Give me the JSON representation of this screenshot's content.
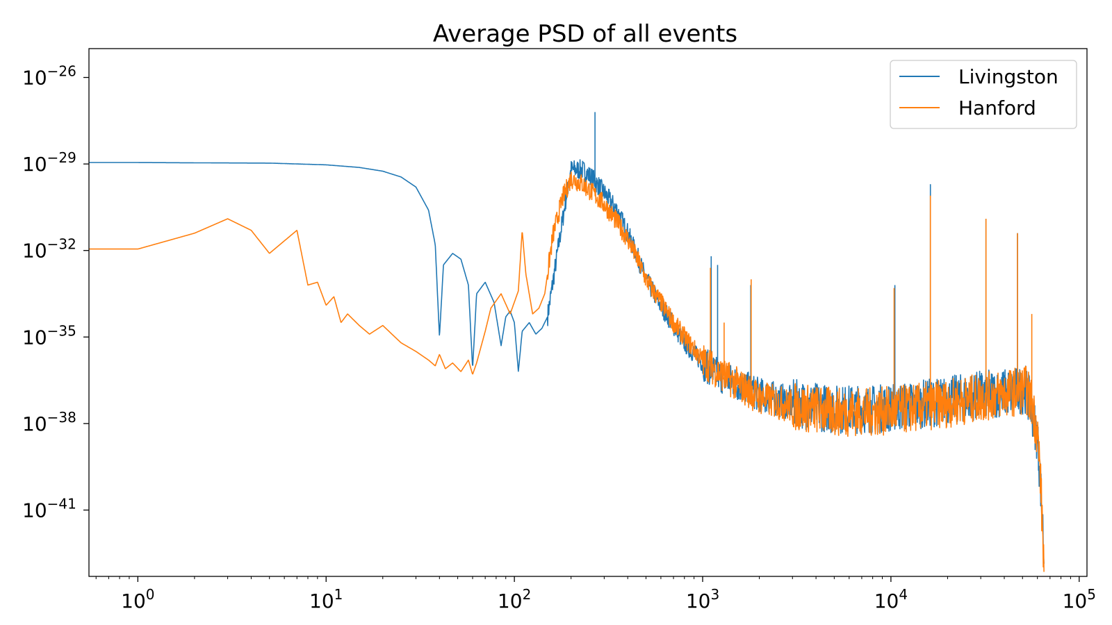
{
  "chart_data": {
    "type": "line",
    "title": "Average PSD of all events",
    "xlabel": "",
    "ylabel": "",
    "xscale": "log",
    "yscale": "log",
    "xlim": [
      0.55,
      110000
    ],
    "ylim_exponent": [
      -43.3,
      -25.0
    ],
    "grid": false,
    "legend_placement": "top-right",
    "x_ticks": [
      {
        "base": "10",
        "exp": "0",
        "value": 1
      },
      {
        "base": "10",
        "exp": "1",
        "value": 10
      },
      {
        "base": "10",
        "exp": "2",
        "value": 100
      },
      {
        "base": "10",
        "exp": "3",
        "value": 1000
      },
      {
        "base": "10",
        "exp": "4",
        "value": 10000
      },
      {
        "base": "10",
        "exp": "5",
        "value": 100000
      }
    ],
    "y_ticks": [
      {
        "base": "10",
        "exp": "−26",
        "value": -26
      },
      {
        "base": "10",
        "exp": "−29",
        "value": -29
      },
      {
        "base": "10",
        "exp": "−32",
        "value": -32
      },
      {
        "base": "10",
        "exp": "−35",
        "value": -35
      },
      {
        "base": "10",
        "exp": "−38",
        "value": -38
      },
      {
        "base": "10",
        "exp": "−41",
        "value": -41
      }
    ],
    "series": [
      {
        "name": "Livingston",
        "color": "#1f77b4",
        "y_unit": "log10(PSD)",
        "x": [
          0.55,
          1,
          2,
          5,
          10,
          15,
          20,
          25,
          30,
          35,
          38,
          40,
          42,
          47,
          52,
          57,
          60,
          63,
          70,
          78,
          85,
          90,
          95,
          100,
          105,
          110,
          120,
          130,
          140,
          150,
          170,
          190,
          200,
          230,
          260,
          300,
          350,
          400,
          450,
          500,
          600,
          700,
          800,
          1000,
          1200,
          1500,
          2000,
          3000,
          5000,
          8000,
          12000,
          20000,
          30000,
          45000,
          52000,
          56000,
          60000,
          62000,
          64000,
          65000
        ],
        "y": [
          -28.95,
          -28.95,
          -28.96,
          -28.97,
          -29.03,
          -29.12,
          -29.25,
          -29.45,
          -29.8,
          -30.6,
          -31.8,
          -35.0,
          -32.5,
          -32.1,
          -32.3,
          -33.2,
          -36.1,
          -33.5,
          -33.1,
          -33.8,
          -35.3,
          -34.3,
          -34.1,
          -34.5,
          -36.2,
          -34.8,
          -34.5,
          -34.9,
          -34.7,
          -34.3,
          -32.0,
          -30.0,
          -29.2,
          -29.2,
          -29.5,
          -30.0,
          -30.6,
          -31.4,
          -32.2,
          -33.0,
          -33.9,
          -34.6,
          -35.2,
          -35.9,
          -36.3,
          -36.6,
          -37.0,
          -37.3,
          -37.5,
          -37.5,
          -37.4,
          -37.2,
          -37.0,
          -36.9,
          -36.8,
          -37.5,
          -38.5,
          -39.8,
          -41.5,
          -42.7
        ],
        "spikes": [
          {
            "x": 268,
            "y": -27.2
          },
          {
            "x": 16200,
            "y": -29.7
          },
          {
            "x": 32000,
            "y": -30.9
          },
          {
            "x": 47000,
            "y": -31.4
          },
          {
            "x": 1110,
            "y": -32.2
          },
          {
            "x": 1200,
            "y": -32.5
          },
          {
            "x": 1800,
            "y": -33.2
          },
          {
            "x": 10500,
            "y": -33.2
          }
        ]
      },
      {
        "name": "Hanford",
        "color": "#ff7f0e",
        "y_unit": "log10(PSD)",
        "x": [
          0.55,
          1,
          2,
          3,
          4,
          5,
          7,
          8,
          9,
          10,
          11,
          12,
          13,
          15,
          17,
          20,
          25,
          30,
          35,
          38,
          40,
          43,
          47,
          52,
          57,
          60,
          63,
          70,
          75,
          85,
          95,
          105,
          110,
          115,
          125,
          135,
          145,
          160,
          180,
          200,
          230,
          260,
          300,
          350,
          400,
          450,
          500,
          600,
          700,
          800,
          1000,
          1200,
          1500,
          2000,
          3000,
          5000,
          8000,
          12000,
          20000,
          30000,
          45000,
          52000,
          56000,
          60000,
          62000,
          64000,
          65000
        ],
        "y": [
          -31.95,
          -31.95,
          -31.4,
          -30.9,
          -31.3,
          -32.1,
          -31.3,
          -33.2,
          -33.1,
          -33.9,
          -33.6,
          -34.5,
          -34.2,
          -34.6,
          -34.9,
          -34.6,
          -35.2,
          -35.5,
          -35.8,
          -36.0,
          -35.6,
          -36.1,
          -35.9,
          -36.2,
          -35.8,
          -36.3,
          -35.9,
          -34.8,
          -34.0,
          -33.5,
          -34.2,
          -33.4,
          -31.3,
          -32.8,
          -34.2,
          -34.0,
          -33.5,
          -31.5,
          -30.2,
          -29.5,
          -29.7,
          -30.0,
          -30.4,
          -31.0,
          -31.6,
          -32.3,
          -33.0,
          -33.8,
          -34.5,
          -35.0,
          -35.8,
          -36.2,
          -36.6,
          -37.1,
          -37.4,
          -37.6,
          -37.6,
          -37.5,
          -37.3,
          -37.1,
          -36.9,
          -36.8,
          -37.3,
          -38.3,
          -39.6,
          -41.8,
          -43.0
        ],
        "spikes": [
          {
            "x": 16200,
            "y": -30.1
          },
          {
            "x": 32000,
            "y": -30.9
          },
          {
            "x": 47000,
            "y": -31.4
          },
          {
            "x": 1100,
            "y": -32.6
          },
          {
            "x": 1810,
            "y": -33.0
          },
          {
            "x": 10400,
            "y": -33.3
          },
          {
            "x": 1300,
            "y": -34.5
          },
          {
            "x": 56000,
            "y": -34.2
          }
        ]
      }
    ]
  }
}
